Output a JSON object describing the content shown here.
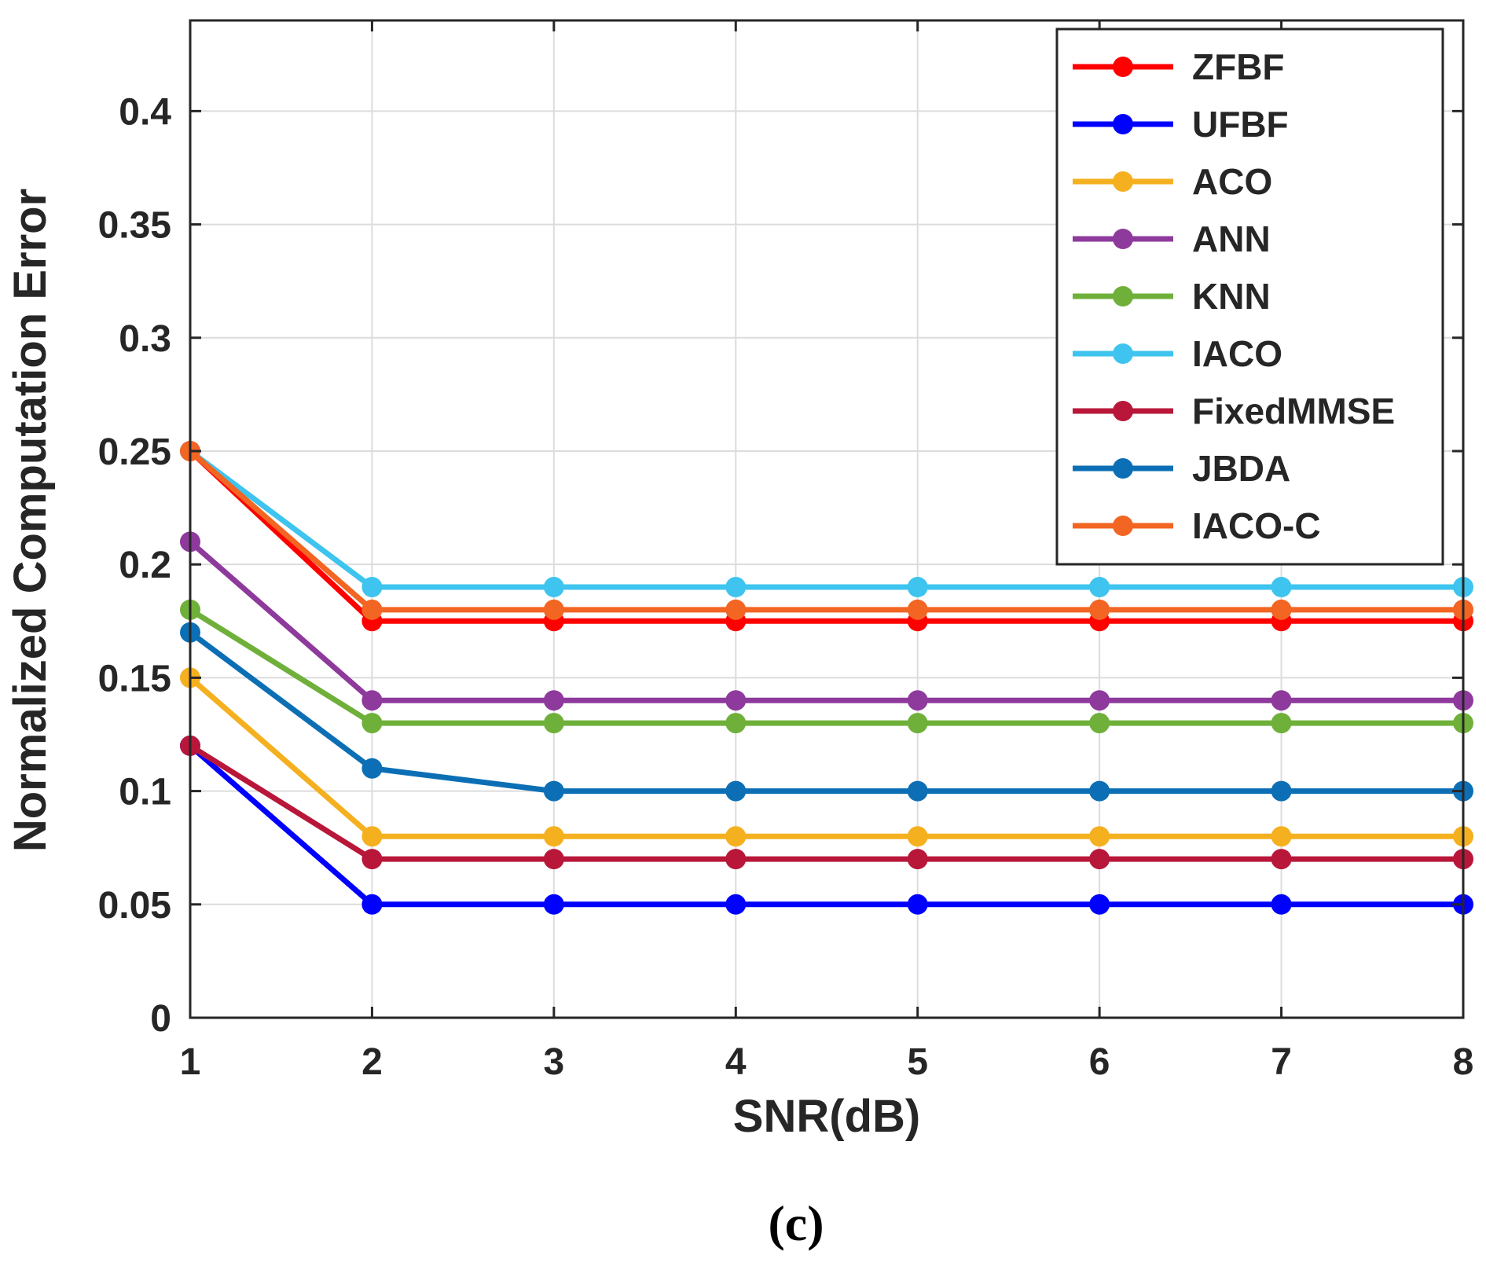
{
  "chart_data": {
    "type": "line",
    "title": "",
    "xlabel": "SNR(dB)",
    "ylabel": "Normalized Computation Error",
    "x": [
      1,
      2,
      3,
      4,
      5,
      6,
      7,
      8
    ],
    "xlim": [
      1,
      8
    ],
    "ylim": [
      0,
      0.44
    ],
    "xticks": [
      "1",
      "2",
      "3",
      "4",
      "5",
      "6",
      "7",
      "8"
    ],
    "yticks": [
      {
        "value": 0,
        "label": "0"
      },
      {
        "value": 0.05,
        "label": "0.05"
      },
      {
        "value": 0.1,
        "label": "0.1"
      },
      {
        "value": 0.15,
        "label": "0.15"
      },
      {
        "value": 0.2,
        "label": "0.2"
      },
      {
        "value": 0.25,
        "label": "0.25"
      },
      {
        "value": 0.3,
        "label": "0.3"
      },
      {
        "value": 0.35,
        "label": "0.35"
      },
      {
        "value": 0.4,
        "label": "0.4"
      }
    ],
    "grid": true,
    "legend_position": "top-right",
    "series": [
      {
        "name": "ZFBF",
        "color": "#ff0000",
        "values": [
          0.25,
          0.175,
          0.175,
          0.175,
          0.175,
          0.175,
          0.175,
          0.175
        ]
      },
      {
        "name": "UFBF",
        "color": "#0000ff",
        "values": [
          0.12,
          0.05,
          0.05,
          0.05,
          0.05,
          0.05,
          0.05,
          0.05
        ]
      },
      {
        "name": "ACO",
        "color": "#f5b020",
        "values": [
          0.15,
          0.08,
          0.08,
          0.08,
          0.08,
          0.08,
          0.08,
          0.08
        ]
      },
      {
        "name": "ANN",
        "color": "#8e3a9c",
        "values": [
          0.21,
          0.14,
          0.14,
          0.14,
          0.14,
          0.14,
          0.14,
          0.14
        ]
      },
      {
        "name": "KNN",
        "color": "#6fb03a",
        "values": [
          0.18,
          0.13,
          0.13,
          0.13,
          0.13,
          0.13,
          0.13,
          0.13
        ]
      },
      {
        "name": "IACO",
        "color": "#3ec4ee",
        "values": [
          0.25,
          0.19,
          0.19,
          0.19,
          0.19,
          0.19,
          0.19,
          0.19
        ]
      },
      {
        "name": "FixedMMSE",
        "color": "#b8173a",
        "values": [
          0.12,
          0.07,
          0.07,
          0.07,
          0.07,
          0.07,
          0.07,
          0.07
        ]
      },
      {
        "name": "JBDA",
        "color": "#0c6fb5",
        "values": [
          0.17,
          0.11,
          0.1,
          0.1,
          0.1,
          0.1,
          0.1,
          0.1
        ]
      },
      {
        "name": "IACO-C",
        "color": "#f26522",
        "values": [
          0.25,
          0.18,
          0.18,
          0.18,
          0.18,
          0.18,
          0.18,
          0.18
        ]
      }
    ]
  },
  "caption": "(c)"
}
